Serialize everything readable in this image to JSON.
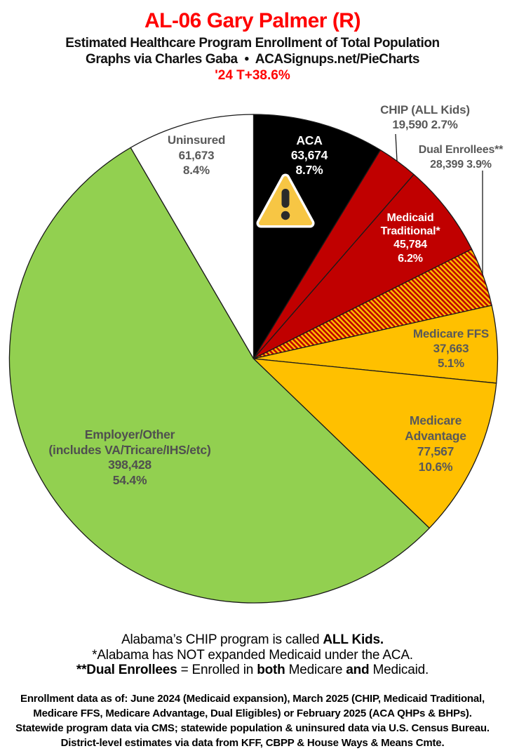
{
  "header": {
    "title": "AL-06 Gary Palmer (R)",
    "subtitle": "Estimated Healthcare Program Enrollment of Total Population",
    "credit": "Graphs via Charles Gaba  •  ACASignups.net/PieCharts",
    "trend": "'24 T+38.6%",
    "title_color": "#FF0000"
  },
  "chart_data": {
    "type": "pie",
    "title": "AL-06 Gary Palmer (R) — Estimated Healthcare Program Enrollment of Total Population",
    "direction": "clockwise",
    "start_angle": "12 o'clock",
    "legend_position": "labels on/around slices",
    "slices": [
      {
        "id": "aca",
        "name": "ACA",
        "value": 63674,
        "pct": 8.7,
        "color": "#000000",
        "label_lines": [
          "ACA",
          "63,674",
          "8.7%"
        ],
        "label_color": "#FFFFFF",
        "icon": "warning-triangle-icon"
      },
      {
        "id": "chip",
        "name": "CHIP (ALL Kids)",
        "value": 19590,
        "pct": 2.7,
        "color": "#C00000",
        "label_lines": [
          "CHIP (ALL Kids)",
          "19,590 2.7%"
        ],
        "label_color": "#595959",
        "leader_line": true
      },
      {
        "id": "medicaid-traditional",
        "name": "Medicaid Traditional*",
        "value": 45784,
        "pct": 6.2,
        "color": "#C00000",
        "label_lines": [
          "Medicaid",
          "Traditional*",
          "45,784",
          "6.2%"
        ],
        "label_color": "#FFFFFF"
      },
      {
        "id": "dual-enrollees",
        "name": "Dual Enrollees**",
        "value": 28399,
        "pct": 3.9,
        "color": "#C00000",
        "hatch_stripe_color": "#FFC000",
        "label_lines": [
          "Dual Enrollees**",
          "28,399 3.9%"
        ],
        "label_color": "#595959",
        "leader_line": true
      },
      {
        "id": "medicare-ffs",
        "name": "Medicare FFS",
        "value": 37663,
        "pct": 5.1,
        "color": "#FFC000",
        "label_lines": [
          "Medicare FFS",
          "37,663",
          "5.1%"
        ],
        "label_color": "#595959"
      },
      {
        "id": "medicare-advantage",
        "name": "Medicare Advantage",
        "value": 77567,
        "pct": 10.6,
        "color": "#FFC000",
        "label_lines": [
          "Medicare",
          "Advantage",
          "77,567",
          "10.6%"
        ],
        "label_color": "#595959"
      },
      {
        "id": "employer-other",
        "name": "Employer/Other (includes VA/Tricare/IHS/etc)",
        "value": 398428,
        "pct": 54.4,
        "color": "#92D050",
        "label_lines": [
          "Employer/Other",
          "(includes VA/Tricare/IHS/etc)",
          "398,428",
          "54.4%"
        ],
        "label_color": "#4F4F4F"
      },
      {
        "id": "uninsured",
        "name": "Uninsured",
        "value": 61673,
        "pct": 8.4,
        "color": "#FFFFFF",
        "label_lines": [
          "Uninsured",
          "61,673",
          "8.4%"
        ],
        "label_color": "#595959"
      }
    ],
    "warning_icon": {
      "name": "warning-triangle-icon",
      "fill": "#F7C644",
      "mark_color": "#2B2B2B",
      "outline": "#FFFFFF"
    }
  },
  "notes": {
    "line1_text": "Alabama’s CHIP program is called ",
    "line1_bold": "ALL Kids.",
    "line2": "*Alabama has NOT expanded Medicaid under the ACA.",
    "line3_bold1": "**Dual Enrollees",
    "line3_text1": " = Enrolled in ",
    "line3_bold2": "both",
    "line3_text2": " Medicare ",
    "line3_bold3": "and",
    "line3_text3": " Medicaid."
  },
  "sources": {
    "lines": [
      "Enrollment data as of: June 2024 (Medicaid expansion), March 2025 (CHIP, Medicaid Traditional,",
      "Medicare FFS, Medicare Advantage, Dual Eligibles) or February 2025 (ACA QHPs & BHPs).",
      "Statewide program data via CMS; statewide population & uninsured data via U.S. Census Bureau.",
      "District-level estimates via data from KFF, CBPP & House Ways & Means Cmte."
    ]
  }
}
